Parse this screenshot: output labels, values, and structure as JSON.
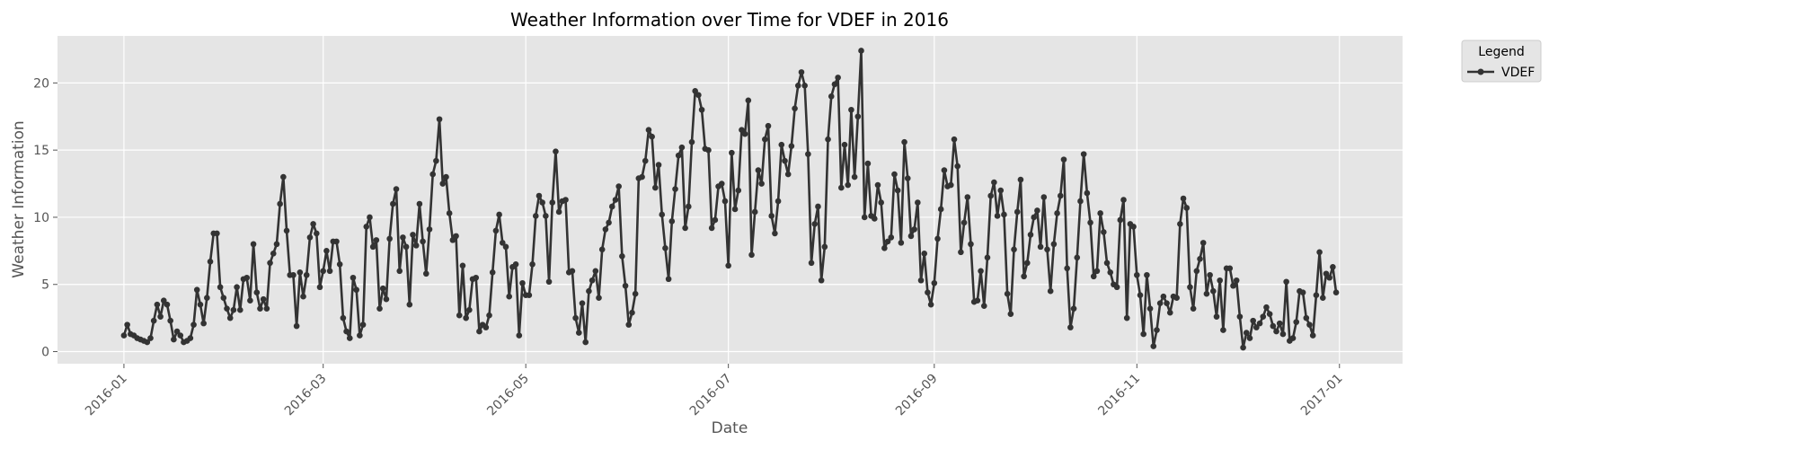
{
  "chart_data": {
    "type": "line",
    "title": "Weather Information over Time for VDEF in 2016",
    "xlabel": "Date",
    "ylabel": "Weather Information",
    "xlim": [
      "2015-12-12",
      "2017-01-20"
    ],
    "ylim": [
      -0.9,
      23.5
    ],
    "x_ticks": [
      "2016-01",
      "2016-03",
      "2016-05",
      "2016-07",
      "2016-09",
      "2016-11",
      "2017-01"
    ],
    "y_ticks": [
      0,
      5,
      10,
      15,
      20
    ],
    "grid": true,
    "legend": {
      "title": "Legend",
      "placement": "outside-top-right"
    },
    "colors": {
      "series": "#333333",
      "plot_background": "#e5e5e5",
      "grid": "#ffffff"
    },
    "series": [
      {
        "name": "VDEF",
        "start_date": "2016-01-01",
        "step": "1 day",
        "values": [
          1.2,
          2.0,
          1.3,
          1.2,
          1.0,
          0.9,
          0.8,
          0.7,
          1.0,
          2.3,
          3.5,
          2.6,
          3.8,
          3.5,
          2.3,
          0.9,
          1.5,
          1.2,
          0.7,
          0.8,
          1.0,
          2.0,
          4.6,
          3.5,
          2.1,
          4.0,
          6.7,
          8.8,
          8.8,
          4.8,
          4.0,
          3.2,
          2.5,
          3.1,
          4.8,
          3.1,
          5.4,
          5.5,
          3.8,
          8.0,
          4.4,
          3.2,
          3.9,
          3.2,
          6.6,
          7.3,
          8.0,
          11.0,
          13.0,
          9.0,
          5.7,
          5.7,
          1.9,
          5.9,
          4.1,
          5.7,
          8.5,
          9.5,
          8.8,
          4.8,
          6.0,
          7.5,
          6.0,
          8.2,
          8.2,
          6.5,
          2.5,
          1.5,
          1.0,
          5.5,
          4.6,
          1.2,
          2.0,
          9.3,
          10.0,
          7.8,
          8.3,
          3.2,
          4.7,
          3.9,
          8.4,
          11.0,
          12.1,
          6.0,
          8.5,
          7.8,
          3.5,
          8.7,
          7.9,
          11.0,
          8.2,
          5.8,
          9.1,
          13.2,
          14.2,
          17.3,
          12.5,
          13.0,
          10.3,
          8.3,
          8.6,
          2.7,
          6.4,
          2.5,
          3.1,
          5.4,
          5.5,
          1.5,
          2.0,
          1.8,
          2.7,
          5.9,
          9.0,
          10.2,
          8.1,
          7.8,
          4.1,
          6.3,
          6.5,
          1.2,
          5.1,
          4.2,
          4.2,
          6.5,
          10.1,
          11.6,
          11.1,
          10.1,
          5.2,
          11.1,
          14.9,
          10.4,
          11.2,
          11.3,
          5.9,
          6.0,
          2.5,
          1.4,
          3.6,
          0.7,
          4.5,
          5.3,
          6.0,
          4.0,
          7.6,
          9.1,
          9.6,
          10.8,
          11.3,
          12.3,
          7.1,
          4.9,
          2.0,
          2.9,
          4.3,
          12.9,
          13.0,
          14.2,
          16.5,
          16.0,
          12.2,
          13.9,
          10.2,
          7.7,
          5.4,
          9.7,
          12.1,
          14.6,
          15.2,
          9.2,
          10.8,
          15.6,
          19.4,
          19.1,
          18.0,
          15.1,
          15.0,
          9.2,
          9.8,
          12.3,
          12.5,
          11.2,
          6.4,
          14.8,
          10.6,
          12.0,
          16.5,
          16.2,
          18.7,
          7.2,
          10.4,
          13.5,
          12.5,
          15.8,
          16.8,
          10.1,
          8.8,
          11.2,
          15.4,
          14.2,
          13.2,
          15.3,
          18.1,
          19.8,
          20.8,
          19.8,
          14.7,
          6.6,
          9.5,
          10.8,
          5.3,
          7.8,
          15.8,
          19.0,
          19.9,
          20.4,
          12.2,
          15.4,
          12.4,
          18.0,
          13.0,
          17.5,
          22.4,
          10.0,
          14.0,
          10.1,
          9.9,
          12.4,
          11.1,
          7.7,
          8.2,
          8.5,
          13.2,
          12.0,
          8.1,
          15.6,
          12.9,
          8.6,
          9.1,
          11.1,
          5.3,
          7.3,
          4.4,
          3.5,
          5.1,
          8.4,
          10.6,
          13.5,
          12.3,
          12.4,
          15.8,
          13.8,
          7.4,
          9.6,
          11.5,
          8.0,
          3.7,
          3.8,
          6.0,
          3.4,
          7.0,
          11.6,
          12.6,
          10.1,
          12.0,
          10.2,
          4.3,
          2.8,
          7.6,
          10.4,
          12.8,
          5.6,
          6.6,
          8.7,
          10.0,
          10.5,
          7.8,
          11.5,
          7.6,
          4.5,
          8.0,
          10.3,
          11.6,
          14.3,
          6.2,
          1.8,
          3.2,
          7.0,
          11.2,
          14.7,
          11.8,
          9.6,
          5.6,
          6.0,
          10.3,
          8.9,
          6.6,
          5.9,
          5.0,
          4.8,
          9.8,
          11.3,
          2.5,
          9.5,
          9.3,
          5.7,
          4.2,
          1.3,
          5.7,
          3.2,
          0.4,
          1.6,
          3.6,
          4.1,
          3.6,
          2.9,
          4.1,
          4.0,
          9.5,
          11.4,
          10.7,
          4.8,
          3.2,
          6.0,
          6.9,
          8.1,
          4.3,
          5.7,
          4.5,
          2.6,
          5.3,
          1.6,
          6.2,
          6.2,
          4.9,
          5.3,
          2.6,
          0.3,
          1.4,
          1.0,
          2.3,
          1.8,
          2.1,
          2.6,
          3.3,
          2.8,
          1.9,
          1.5,
          2.1,
          1.3,
          5.2,
          0.8,
          1.0,
          2.2,
          4.5,
          4.4,
          2.5,
          2.0,
          1.2,
          4.2,
          7.4,
          4.0,
          5.8,
          5.5,
          6.3,
          4.4
        ]
      }
    ]
  }
}
